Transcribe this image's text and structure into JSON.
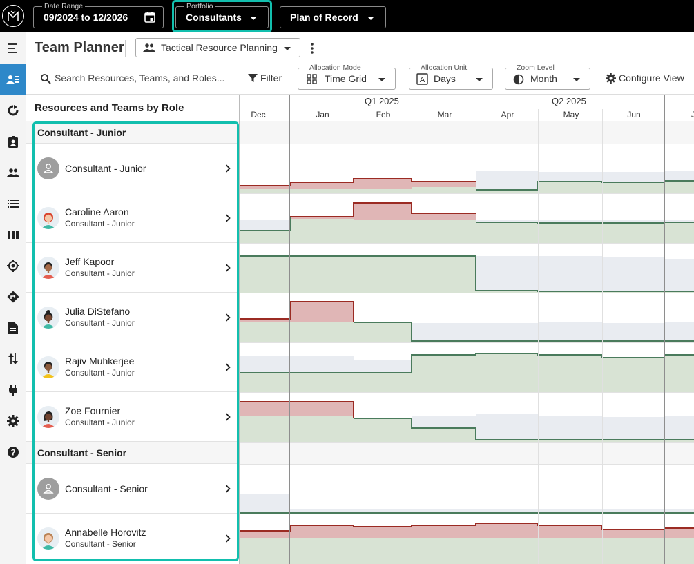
{
  "topbar": {
    "date_range": {
      "legend": "Date Range",
      "value": "09/2024 to 12/2026"
    },
    "portfolio": {
      "legend": "Portfolio",
      "value": "Consultants"
    },
    "plan": {
      "value": "Plan of Record"
    }
  },
  "nav": {
    "items": [
      "menu-icon",
      "team-planner-icon",
      "refresh-icon",
      "badge-icon",
      "people-icon",
      "list-icon",
      "columns-icon",
      "target-icon",
      "directions-icon",
      "document-icon",
      "swap-vertical-icon",
      "plug-icon",
      "settings-icon",
      "help-icon"
    ],
    "active": "team-planner-icon"
  },
  "header": {
    "title": "Team Planner",
    "view": "Tactical Resource Planning"
  },
  "toolbar": {
    "search_placeholder": "Search Resources, Teams, and Roles...",
    "filter": "Filter",
    "allocation_mode": {
      "legend": "Allocation Mode",
      "value": "Time Grid"
    },
    "allocation_unit": {
      "legend": "Allocation Unit",
      "value": "Days"
    },
    "zoom_level": {
      "legend": "Zoom Level",
      "value": "Month"
    },
    "configure": "Configure View"
  },
  "grid": {
    "left_header": "Resources and Teams by Role",
    "quarters": [
      "Q1 2025",
      "Q2 2025"
    ],
    "months": [
      "Dec",
      "Jan",
      "Feb",
      "Mar",
      "Apr",
      "May",
      "Jun",
      "J"
    ],
    "groups": [
      {
        "label": "Consultant - Junior",
        "rows": [
          {
            "name": "Consultant - Junior",
            "role": "",
            "avatar": "generic"
          },
          {
            "name": "Caroline Aaron",
            "role": "Consultant - Junior",
            "avatar": "person"
          },
          {
            "name": "Jeff Kapoor",
            "role": "Consultant - Junior",
            "avatar": "person"
          },
          {
            "name": "Julia DiStefano",
            "role": "Consultant - Junior",
            "avatar": "person"
          },
          {
            "name": "Rajiv Muhkerjee",
            "role": "Consultant - Junior",
            "avatar": "person"
          },
          {
            "name": "Zoe Fournier",
            "role": "Consultant - Junior",
            "avatar": "person"
          }
        ]
      },
      {
        "label": "Consultant - Senior",
        "rows": [
          {
            "name": "Consultant - Senior",
            "role": "",
            "avatar": "generic"
          },
          {
            "name": "Annabelle Horovitz",
            "role": "Consultant - Senior",
            "avatar": "person"
          }
        ]
      }
    ]
  },
  "colors": {
    "accent": "#12bfae",
    "nav_active": "#2e88c9",
    "over": "#e0b6b6",
    "over_line": "#9b2b23",
    "alloc": "#d8e3d4",
    "alloc_line": "#4a7b5c",
    "capacity": "#e9ecf1"
  }
}
